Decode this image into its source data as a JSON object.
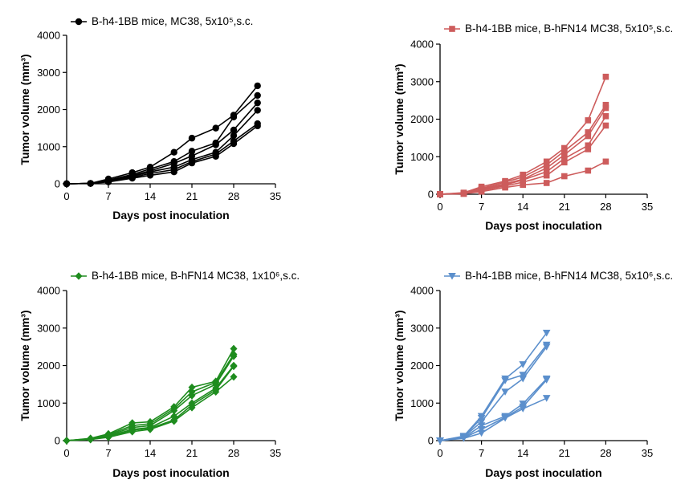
{
  "chart_data": [
    {
      "type": "line",
      "title": "",
      "xlabel": "Days post inoculation",
      "ylabel": "Tumor volume (mm³)",
      "xlim": [
        0,
        35
      ],
      "ylim": [
        0,
        4000
      ],
      "xticks": [
        0,
        7,
        14,
        21,
        28,
        35
      ],
      "yticks": [
        0,
        1000,
        2000,
        3000,
        4000
      ],
      "color": "#000000",
      "marker": "circle",
      "legend": "B-h4-1BB mice, MC38, 5x10⁵,s.c.",
      "legend_position": "top",
      "x": [
        0,
        4,
        7,
        11,
        14,
        18,
        21,
        25,
        28,
        32
      ],
      "series": [
        {
          "values": [
            0,
            10,
            130,
            300,
            450,
            850,
            1230,
            1500,
            1850,
            2640
          ]
        },
        {
          "values": [
            0,
            10,
            100,
            250,
            400,
            600,
            880,
            1100,
            1800,
            2380
          ]
        },
        {
          "values": [
            0,
            10,
            90,
            220,
            350,
            550,
            750,
            1050,
            1450,
            2180
          ]
        },
        {
          "values": [
            0,
            10,
            80,
            200,
            320,
            450,
            650,
            850,
            1300,
            1980
          ]
        },
        {
          "values": [
            0,
            10,
            70,
            170,
            280,
            380,
            600,
            800,
            1150,
            1620
          ]
        },
        {
          "values": [
            0,
            10,
            50,
            150,
            230,
            320,
            560,
            740,
            1080,
            1560
          ]
        }
      ]
    },
    {
      "type": "line",
      "title": "",
      "xlabel": "Days post inoculation",
      "ylabel": "Tumor volume (mm³)",
      "xlim": [
        0,
        35
      ],
      "ylim": [
        0,
        4000
      ],
      "xticks": [
        0,
        7,
        14,
        21,
        28,
        35
      ],
      "yticks": [
        0,
        1000,
        2000,
        3000,
        4000
      ],
      "color": "#CD5C5C",
      "marker": "square",
      "legend": "B-h4-1BB mice, B-hFN14 MC38, 5x10⁵,s.c.",
      "legend_position": "top",
      "x": [
        0,
        4,
        7,
        11,
        14,
        18,
        21,
        25,
        28
      ],
      "series": [
        {
          "values": [
            0,
            40,
            200,
            350,
            520,
            870,
            1230,
            1970,
            3130
          ]
        },
        {
          "values": [
            0,
            30,
            160,
            320,
            460,
            780,
            1150,
            1650,
            2380
          ]
        },
        {
          "values": [
            0,
            30,
            140,
            280,
            400,
            700,
            1050,
            1550,
            2300
          ]
        },
        {
          "values": [
            0,
            20,
            120,
            250,
            380,
            600,
            950,
            1300,
            2080
          ]
        },
        {
          "values": [
            0,
            20,
            100,
            220,
            320,
            500,
            850,
            1200,
            1830
          ]
        },
        {
          "values": [
            0,
            10,
            70,
            180,
            250,
            300,
            480,
            630,
            870
          ]
        }
      ]
    },
    {
      "type": "line",
      "title": "",
      "xlabel": "Days post inoculation",
      "ylabel": "Tumor volume (mm³)",
      "xlim": [
        0,
        35
      ],
      "ylim": [
        0,
        4000
      ],
      "xticks": [
        0,
        7,
        14,
        21,
        28,
        35
      ],
      "yticks": [
        0,
        1000,
        2000,
        3000,
        4000
      ],
      "color": "#1E8C1E",
      "marker": "diamond",
      "legend": "B-h4-1BB mice, B-hFN14 MC38, 1x10⁶,s.c.",
      "legend_position": "top",
      "x": [
        0,
        4,
        7,
        11,
        14,
        18,
        21,
        25,
        28
      ],
      "series": [
        {
          "values": [
            0,
            60,
            180,
            470,
            500,
            900,
            1420,
            1580,
            2450
          ]
        },
        {
          "values": [
            0,
            50,
            160,
            400,
            450,
            850,
            1300,
            1550,
            2300
          ]
        },
        {
          "values": [
            0,
            50,
            140,
            350,
            400,
            800,
            1200,
            1500,
            2250
          ]
        },
        {
          "values": [
            0,
            40,
            120,
            300,
            350,
            650,
            1000,
            1400,
            2000
          ]
        },
        {
          "values": [
            0,
            30,
            100,
            280,
            330,
            550,
            950,
            1350,
            1980
          ]
        },
        {
          "values": [
            0,
            30,
            90,
            240,
            300,
            520,
            880,
            1300,
            1700
          ]
        }
      ]
    },
    {
      "type": "line",
      "title": "",
      "xlabel": "Days post inoculation",
      "ylabel": "Tumor volume (mm³)",
      "xlim": [
        0,
        35
      ],
      "ylim": [
        0,
        4000
      ],
      "xticks": [
        0,
        7,
        14,
        21,
        28,
        35
      ],
      "yticks": [
        0,
        1000,
        2000,
        3000,
        4000
      ],
      "color": "#5B8FCC",
      "marker": "triangle-down",
      "legend": "B-h4-1BB mice, B-hFN14 MC38, 5x10⁶,s.c.",
      "legend_position": "top",
      "x": [
        0,
        4,
        7,
        11,
        14,
        18
      ],
      "series": [
        {
          "values": [
            0,
            120,
            650,
            1650,
            2030,
            2870
          ]
        },
        {
          "values": [
            0,
            110,
            600,
            1600,
            1750,
            2550
          ]
        },
        {
          "values": [
            0,
            100,
            500,
            1300,
            1650,
            2500
          ]
        },
        {
          "values": [
            0,
            80,
            400,
            650,
            980,
            1650
          ]
        },
        {
          "values": [
            0,
            70,
            300,
            620,
            900,
            1620
          ]
        },
        {
          "values": [
            0,
            60,
            200,
            600,
            850,
            1130
          ]
        }
      ]
    }
  ]
}
